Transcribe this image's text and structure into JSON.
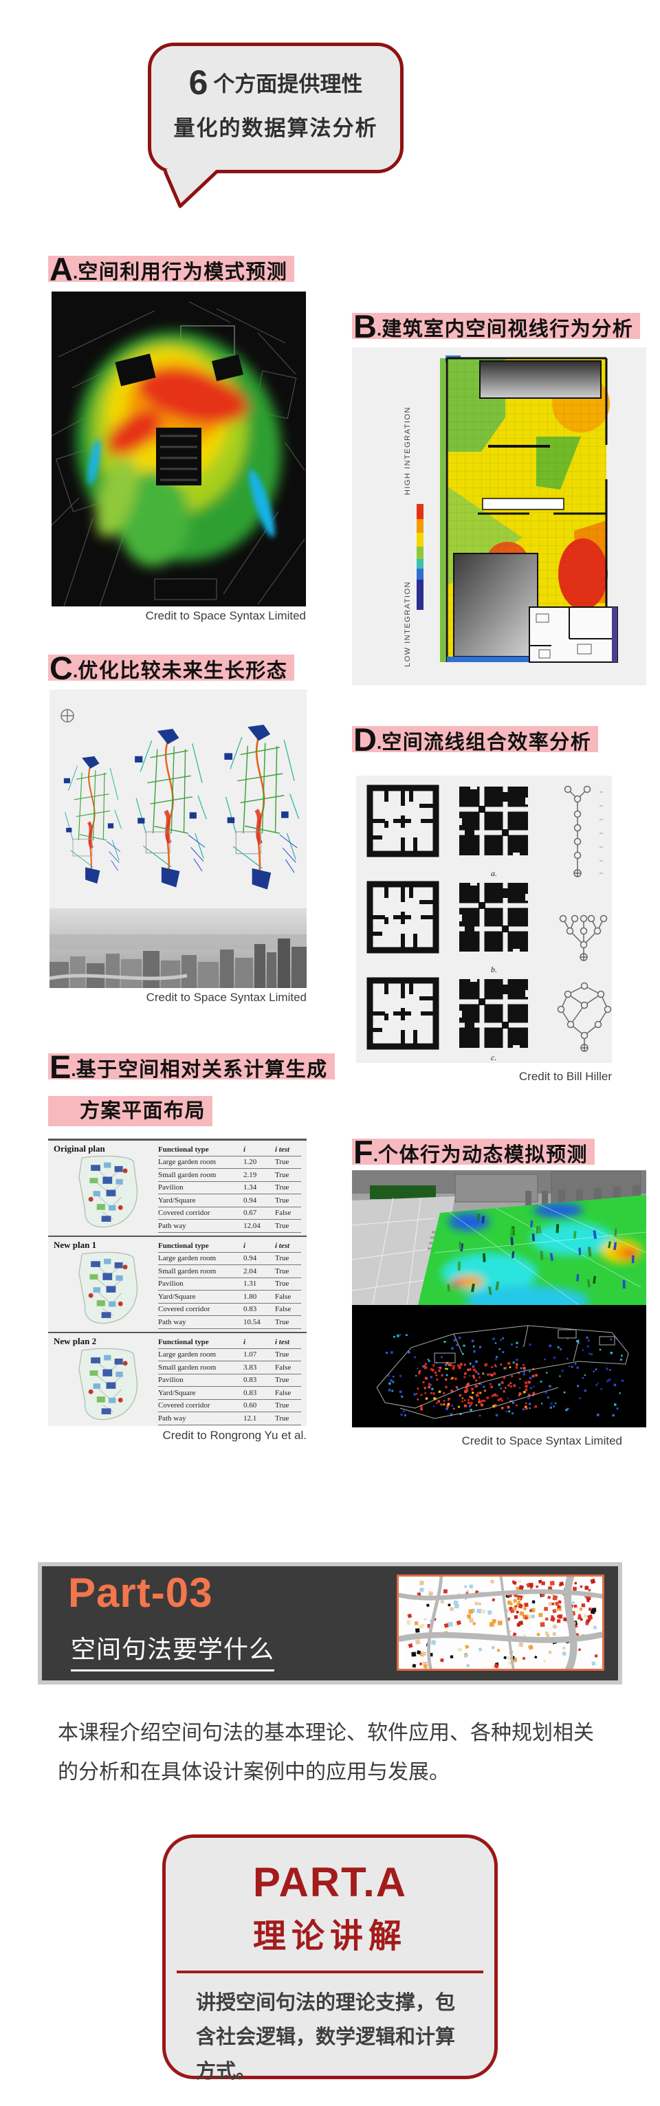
{
  "bubble": {
    "number": "6",
    "line1": "个方面提供理性",
    "line2": "量化的数据算法分析"
  },
  "sections": {
    "dot": ".",
    "a": {
      "letter": "A",
      "title": "空间利用行为模式预测",
      "credit": "Credit to Space Syntax Limited"
    },
    "b": {
      "letter": "B",
      "title": "建筑室内空间视线行为分析",
      "legend_high": "HIGH INTEGRATION",
      "legend_low": "LOW INTEGRATION"
    },
    "c": {
      "letter": "C",
      "title": "优化比较未来生长形态",
      "credit": "Credit to Space Syntax Limited"
    },
    "d": {
      "letter": "D",
      "title": "空间流线组合效率分析",
      "credit": "Credit to Bill Hiller",
      "labels": [
        "a.",
        "b.",
        "c."
      ]
    },
    "e": {
      "letter": "E",
      "title_line1": "基于空间相对关系计算生成",
      "title_line2": "方案平面布局",
      "credit": "Credit to Rongrong Yu et al."
    },
    "f": {
      "letter": "F",
      "title": "个体行为动态模拟预测",
      "credit": "Credit to Space Syntax Limited"
    }
  },
  "e_table": {
    "groups": [
      {
        "name": "Original plan",
        "headers": [
          "Functional type",
          "i",
          "i test"
        ],
        "rows": [
          [
            "Large garden room",
            "1.20",
            "True"
          ],
          [
            "Small garden room",
            "2.19",
            "True"
          ],
          [
            "Pavilion",
            "1.34",
            "True"
          ],
          [
            "Yard/Square",
            "0.94",
            "True"
          ],
          [
            "Covered corridor",
            "0.67",
            "False"
          ],
          [
            "Path way",
            "12.04",
            "True"
          ]
        ]
      },
      {
        "name": "New plan 1",
        "headers": [
          "Functional type",
          "i",
          "i test"
        ],
        "rows": [
          [
            "Large garden room",
            "0.94",
            "True"
          ],
          [
            "Small garden room",
            "2.04",
            "True"
          ],
          [
            "Pavilion",
            "1.31",
            "True"
          ],
          [
            "Yard/Square",
            "1.80",
            "False"
          ],
          [
            "Covered corridor",
            "0.83",
            "False"
          ],
          [
            "Path way",
            "10.54",
            "True"
          ]
        ]
      },
      {
        "name": "New plan 2",
        "headers": [
          "Functional type",
          "i",
          "i test"
        ],
        "rows": [
          [
            "Large garden room",
            "1.07",
            "True"
          ],
          [
            "Small garden room",
            "3.83",
            "False"
          ],
          [
            "Pavilion",
            "0.83",
            "True"
          ],
          [
            "Yard/Square",
            "0.83",
            "False"
          ],
          [
            "Covered corridor",
            "0.60",
            "True"
          ],
          [
            "Path way",
            "12.1",
            "True"
          ]
        ]
      }
    ]
  },
  "part03": {
    "title": "Part-03",
    "subtitle": "空间句法要学什么"
  },
  "paragraph": "本课程介绍空间句法的基本理论、软件应用、各种规划相关的分析和在具体设计案例中的应用与发展。",
  "part_a": {
    "title": "PART.A",
    "subtitle": "理论讲解",
    "body": "讲授空间句法的理论支撑，包含社会逻辑，数学逻辑和计算方式。"
  },
  "colors": {
    "accent_red": "#8e1212",
    "highlight_pink": "#f7b9be",
    "part3_orange": "#f3764d",
    "panel_dark": "#3b3b3b",
    "map_border": "#e06c45"
  }
}
